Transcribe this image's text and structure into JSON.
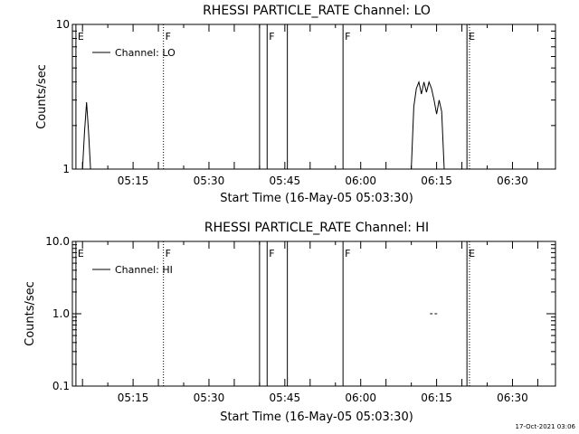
{
  "footer": {
    "timestamp": "17-Oct-2021 03:06"
  },
  "chart_data": [
    {
      "type": "line",
      "title": "RHESSI PARTICLE_RATE Channel: LO",
      "xlabel": "Start Time (16-May-05 05:03:30)",
      "ylabel": "Counts/sec",
      "yscale": "log",
      "ylim": [
        1,
        10
      ],
      "xlim_min": [
        -0.5,
        95
      ],
      "y_ticks": [
        {
          "v": 1,
          "label": "1"
        },
        {
          "v": 10,
          "label": "10"
        }
      ],
      "x_ticks": [
        {
          "v": 11.5,
          "label": "05:15"
        },
        {
          "v": 26.5,
          "label": "05:30"
        },
        {
          "v": 41.5,
          "label": "05:45"
        },
        {
          "v": 56.5,
          "label": "06:00"
        },
        {
          "v": 71.5,
          "label": "06:15"
        },
        {
          "v": 86.5,
          "label": "06:30"
        }
      ],
      "legend": {
        "label": "Channel: LO",
        "position": "top-left"
      },
      "series": [
        {
          "name": "Channel: LO",
          "segments": [
            [
              [
                1.5,
                1.0
              ],
              [
                1.9,
                1.8
              ],
              [
                2.3,
                2.9
              ],
              [
                2.7,
                1.8
              ],
              [
                3.1,
                1.0
              ]
            ],
            [
              [
                66.5,
                1.0
              ],
              [
                67.0,
                2.7
              ],
              [
                67.5,
                3.6
              ],
              [
                68.0,
                4.0
              ],
              [
                68.5,
                3.3
              ],
              [
                69.0,
                4.0
              ],
              [
                69.5,
                3.4
              ],
              [
                70.0,
                4.0
              ],
              [
                70.5,
                3.6
              ],
              [
                71.0,
                3.0
              ],
              [
                71.5,
                2.4
              ],
              [
                72.0,
                3.0
              ],
              [
                72.5,
                2.5
              ],
              [
                73.0,
                1.0
              ]
            ]
          ]
        }
      ],
      "events": [
        {
          "t": 0.2,
          "style": "solid",
          "label": "E"
        },
        {
          "t": 17.5,
          "style": "dotted",
          "label": "F"
        },
        {
          "t": 36.5,
          "style": "solid",
          "label": ""
        },
        {
          "t": 38.0,
          "style": "solid",
          "label": "F"
        },
        {
          "t": 42.0,
          "style": "solid",
          "label": ""
        },
        {
          "t": 53.0,
          "style": "solid",
          "label": "F"
        },
        {
          "t": 77.5,
          "style": "solid",
          "label": "E"
        },
        {
          "t": 78.0,
          "style": "dotted",
          "label": ""
        },
        {
          "t": 95.0,
          "style": "dotted",
          "label": ""
        }
      ]
    },
    {
      "type": "line",
      "title": "RHESSI PARTICLE_RATE Channel: HI",
      "xlabel": "Start Time (16-May-05 05:03:30)",
      "ylabel": "Counts/sec",
      "yscale": "log",
      "ylim": [
        0.1,
        10
      ],
      "xlim_min": [
        -0.5,
        95
      ],
      "y_ticks": [
        {
          "v": 0.1,
          "label": "0.1"
        },
        {
          "v": 1,
          "label": "1.0"
        },
        {
          "v": 10,
          "label": "10.0"
        }
      ],
      "x_ticks": [
        {
          "v": 11.5,
          "label": "05:15"
        },
        {
          "v": 26.5,
          "label": "05:30"
        },
        {
          "v": 41.5,
          "label": "05:45"
        },
        {
          "v": 56.5,
          "label": "06:00"
        },
        {
          "v": 71.5,
          "label": "06:15"
        },
        {
          "v": 86.5,
          "label": "06:30"
        }
      ],
      "legend": {
        "label": "Channel: HI",
        "position": "top-left"
      },
      "series": [
        {
          "name": "Channel: HI",
          "segments": [
            [
              [
                70.2,
                1.0
              ],
              [
                70.7,
                1.0
              ]
            ],
            [
              [
                71.1,
                1.0
              ],
              [
                71.6,
                1.0
              ]
            ]
          ]
        }
      ],
      "events": [
        {
          "t": 0.2,
          "style": "solid",
          "label": "E"
        },
        {
          "t": 17.5,
          "style": "dotted",
          "label": "F"
        },
        {
          "t": 36.5,
          "style": "solid",
          "label": ""
        },
        {
          "t": 38.0,
          "style": "solid",
          "label": "F"
        },
        {
          "t": 42.0,
          "style": "solid",
          "label": ""
        },
        {
          "t": 53.0,
          "style": "solid",
          "label": "F"
        },
        {
          "t": 77.5,
          "style": "solid",
          "label": "E"
        },
        {
          "t": 78.0,
          "style": "dotted",
          "label": ""
        },
        {
          "t": 95.0,
          "style": "dotted",
          "label": ""
        }
      ]
    }
  ]
}
